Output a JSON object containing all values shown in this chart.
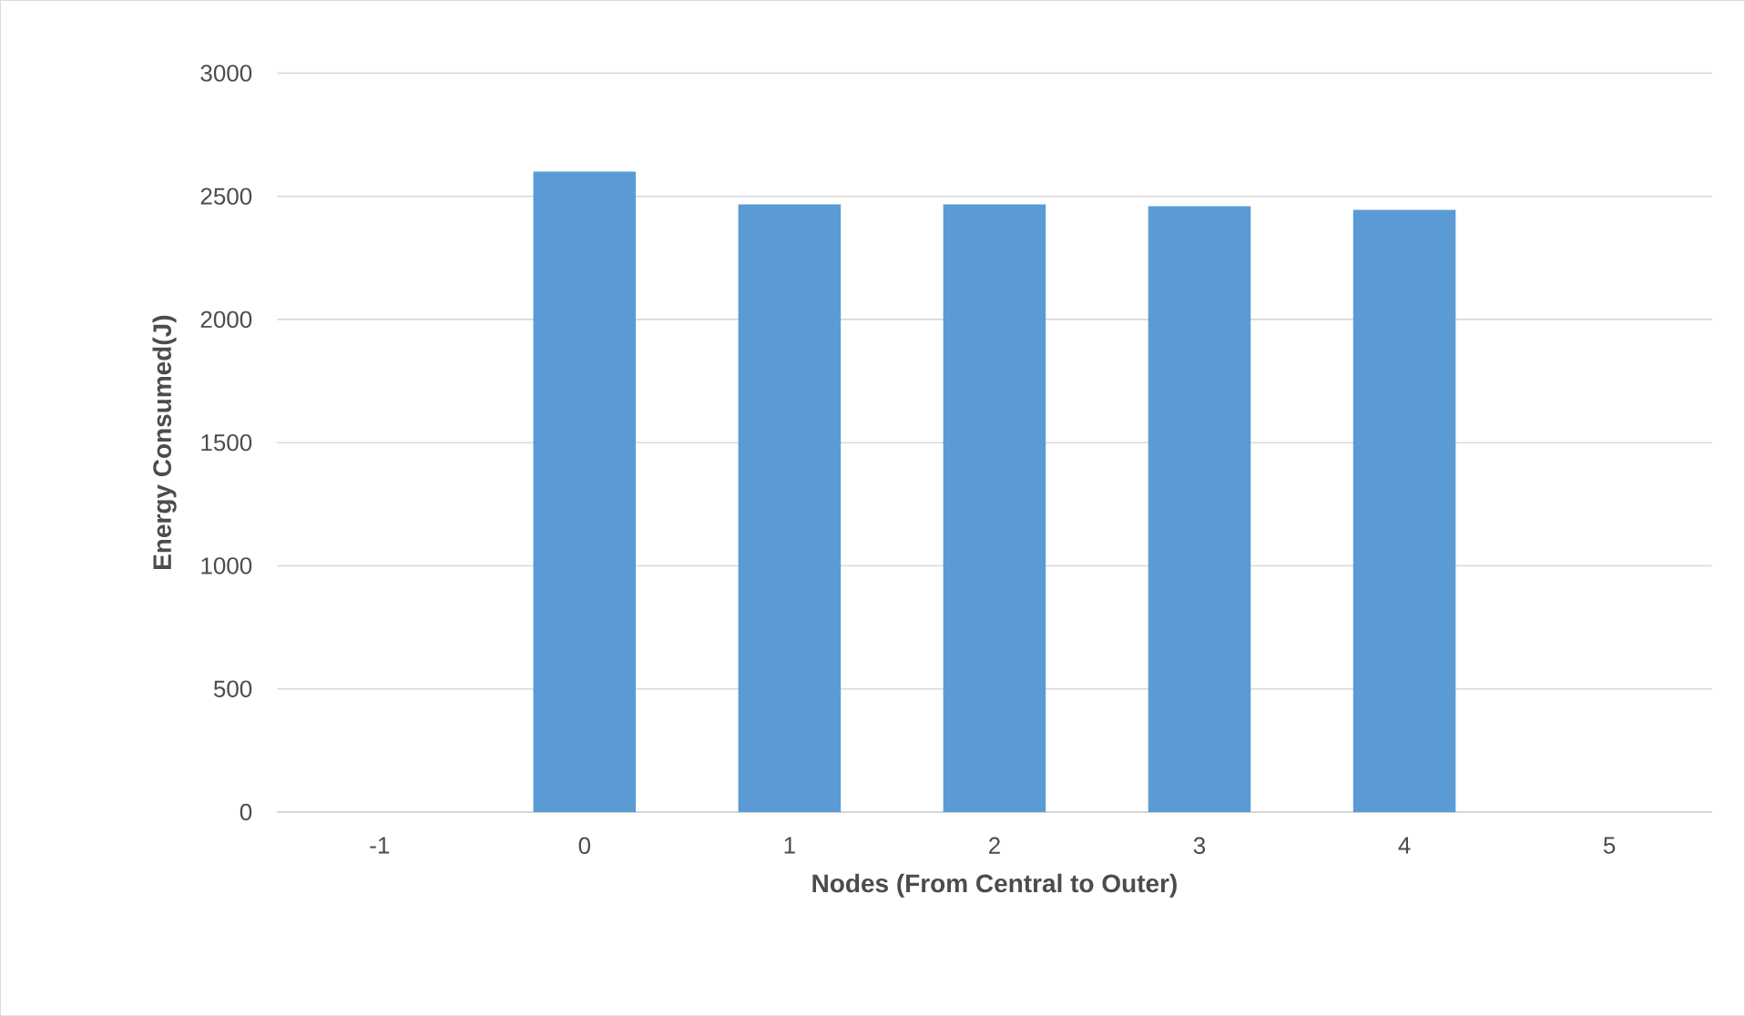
{
  "chart_data": {
    "type": "bar",
    "xlabel": "Nodes (From Central to Outer)",
    "ylabel": "Energy Consumed(J)",
    "categories": [
      "-1",
      "0",
      "1",
      "2",
      "3",
      "4",
      "5"
    ],
    "values": [
      null,
      2600,
      2467,
      2467,
      2460,
      2445,
      null
    ],
    "color": "#5b9bd5",
    "ylim": [
      0,
      3000
    ],
    "yticks": [
      0,
      500,
      1000,
      1500,
      2000,
      2500,
      3000
    ],
    "grid": "y"
  }
}
